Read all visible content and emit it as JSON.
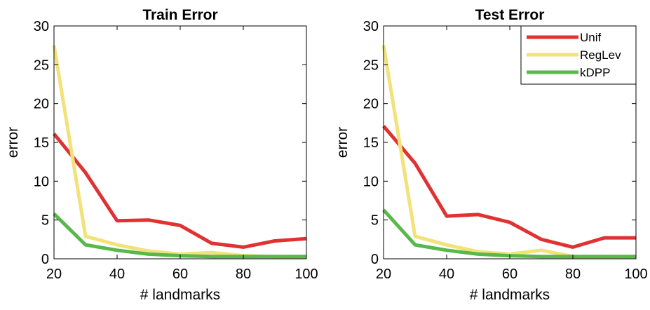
{
  "colors": {
    "Unif": "#e03232",
    "RegLev": "#f2e27a",
    "kDPP": "#58b84a"
  },
  "chart_data": [
    {
      "type": "line",
      "title": "Train Error",
      "xlabel": "# landmarks",
      "ylabel": "error",
      "xlim": [
        20,
        100
      ],
      "ylim": [
        0,
        30
      ],
      "xticks": [
        "20",
        "40",
        "60",
        "80",
        "100"
      ],
      "yticks": [
        "0",
        "5",
        "10",
        "15",
        "20",
        "25",
        "30"
      ],
      "grid": false,
      "x": [
        20,
        30,
        40,
        50,
        60,
        70,
        80,
        90,
        100
      ],
      "series": [
        {
          "name": "Unif",
          "values": [
            16.1,
            11.1,
            4.9,
            5.0,
            4.3,
            2.0,
            1.5,
            2.3,
            2.6
          ]
        },
        {
          "name": "RegLev",
          "values": [
            27.5,
            2.9,
            1.8,
            1.0,
            0.6,
            0.8,
            0.4,
            0.3,
            0.3
          ]
        },
        {
          "name": "kDPP",
          "values": [
            5.8,
            1.8,
            1.1,
            0.6,
            0.4,
            0.3,
            0.3,
            0.3,
            0.3
          ]
        }
      ]
    },
    {
      "type": "line",
      "title": "Test Error",
      "xlabel": "# landmarks",
      "ylabel": "error",
      "xlim": [
        20,
        100
      ],
      "ylim": [
        0,
        30
      ],
      "xticks": [
        "20",
        "40",
        "60",
        "80",
        "100"
      ],
      "yticks": [
        "0",
        "5",
        "10",
        "15",
        "20",
        "25",
        "30"
      ],
      "grid": false,
      "legend": {
        "position": "top-right",
        "entries": [
          "Unif",
          "RegLev",
          "kDPP"
        ]
      },
      "x": [
        20,
        30,
        40,
        50,
        60,
        70,
        80,
        90,
        100
      ],
      "series": [
        {
          "name": "Unif",
          "values": [
            17.1,
            12.3,
            5.5,
            5.7,
            4.7,
            2.5,
            1.5,
            2.7,
            2.7
          ]
        },
        {
          "name": "RegLev",
          "values": [
            27.5,
            2.9,
            1.8,
            0.9,
            0.6,
            1.1,
            0.3,
            0.3,
            0.3
          ]
        },
        {
          "name": "kDPP",
          "values": [
            6.3,
            1.8,
            1.1,
            0.6,
            0.4,
            0.3,
            0.3,
            0.3,
            0.3
          ]
        }
      ]
    }
  ]
}
